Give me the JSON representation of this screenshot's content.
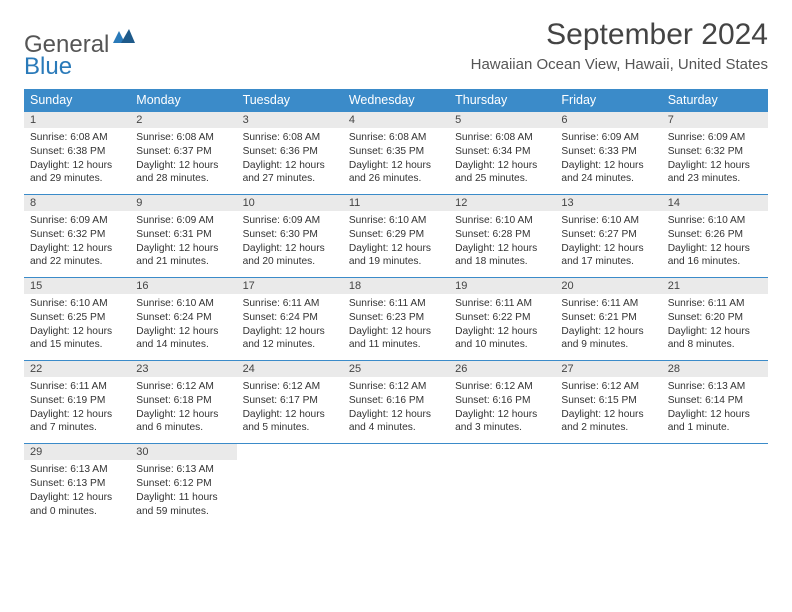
{
  "brand": {
    "part1": "General",
    "part2": "Blue"
  },
  "title": "September 2024",
  "location": "Hawaiian Ocean View, Hawaii, United States",
  "colors": {
    "header_bg": "#3b8bc9",
    "header_text": "#ffffff",
    "daynum_bg": "#eaeaea",
    "border": "#3b8bc9",
    "logo_accent": "#2a7ab9"
  },
  "weekdays": [
    "Sunday",
    "Monday",
    "Tuesday",
    "Wednesday",
    "Thursday",
    "Friday",
    "Saturday"
  ],
  "layout": {
    "columns": 7,
    "rows": 5,
    "start_weekday": 0,
    "days_in_month": 30
  },
  "days": [
    {
      "n": 1,
      "sunrise": "6:08 AM",
      "sunset": "6:38 PM",
      "daylight": "12 hours and 29 minutes."
    },
    {
      "n": 2,
      "sunrise": "6:08 AM",
      "sunset": "6:37 PM",
      "daylight": "12 hours and 28 minutes."
    },
    {
      "n": 3,
      "sunrise": "6:08 AM",
      "sunset": "6:36 PM",
      "daylight": "12 hours and 27 minutes."
    },
    {
      "n": 4,
      "sunrise": "6:08 AM",
      "sunset": "6:35 PM",
      "daylight": "12 hours and 26 minutes."
    },
    {
      "n": 5,
      "sunrise": "6:08 AM",
      "sunset": "6:34 PM",
      "daylight": "12 hours and 25 minutes."
    },
    {
      "n": 6,
      "sunrise": "6:09 AM",
      "sunset": "6:33 PM",
      "daylight": "12 hours and 24 minutes."
    },
    {
      "n": 7,
      "sunrise": "6:09 AM",
      "sunset": "6:32 PM",
      "daylight": "12 hours and 23 minutes."
    },
    {
      "n": 8,
      "sunrise": "6:09 AM",
      "sunset": "6:32 PM",
      "daylight": "12 hours and 22 minutes."
    },
    {
      "n": 9,
      "sunrise": "6:09 AM",
      "sunset": "6:31 PM",
      "daylight": "12 hours and 21 minutes."
    },
    {
      "n": 10,
      "sunrise": "6:09 AM",
      "sunset": "6:30 PM",
      "daylight": "12 hours and 20 minutes."
    },
    {
      "n": 11,
      "sunrise": "6:10 AM",
      "sunset": "6:29 PM",
      "daylight": "12 hours and 19 minutes."
    },
    {
      "n": 12,
      "sunrise": "6:10 AM",
      "sunset": "6:28 PM",
      "daylight": "12 hours and 18 minutes."
    },
    {
      "n": 13,
      "sunrise": "6:10 AM",
      "sunset": "6:27 PM",
      "daylight": "12 hours and 17 minutes."
    },
    {
      "n": 14,
      "sunrise": "6:10 AM",
      "sunset": "6:26 PM",
      "daylight": "12 hours and 16 minutes."
    },
    {
      "n": 15,
      "sunrise": "6:10 AM",
      "sunset": "6:25 PM",
      "daylight": "12 hours and 15 minutes."
    },
    {
      "n": 16,
      "sunrise": "6:10 AM",
      "sunset": "6:24 PM",
      "daylight": "12 hours and 14 minutes."
    },
    {
      "n": 17,
      "sunrise": "6:11 AM",
      "sunset": "6:24 PM",
      "daylight": "12 hours and 12 minutes."
    },
    {
      "n": 18,
      "sunrise": "6:11 AM",
      "sunset": "6:23 PM",
      "daylight": "12 hours and 11 minutes."
    },
    {
      "n": 19,
      "sunrise": "6:11 AM",
      "sunset": "6:22 PM",
      "daylight": "12 hours and 10 minutes."
    },
    {
      "n": 20,
      "sunrise": "6:11 AM",
      "sunset": "6:21 PM",
      "daylight": "12 hours and 9 minutes."
    },
    {
      "n": 21,
      "sunrise": "6:11 AM",
      "sunset": "6:20 PM",
      "daylight": "12 hours and 8 minutes."
    },
    {
      "n": 22,
      "sunrise": "6:11 AM",
      "sunset": "6:19 PM",
      "daylight": "12 hours and 7 minutes."
    },
    {
      "n": 23,
      "sunrise": "6:12 AM",
      "sunset": "6:18 PM",
      "daylight": "12 hours and 6 minutes."
    },
    {
      "n": 24,
      "sunrise": "6:12 AM",
      "sunset": "6:17 PM",
      "daylight": "12 hours and 5 minutes."
    },
    {
      "n": 25,
      "sunrise": "6:12 AM",
      "sunset": "6:16 PM",
      "daylight": "12 hours and 4 minutes."
    },
    {
      "n": 26,
      "sunrise": "6:12 AM",
      "sunset": "6:16 PM",
      "daylight": "12 hours and 3 minutes."
    },
    {
      "n": 27,
      "sunrise": "6:12 AM",
      "sunset": "6:15 PM",
      "daylight": "12 hours and 2 minutes."
    },
    {
      "n": 28,
      "sunrise": "6:13 AM",
      "sunset": "6:14 PM",
      "daylight": "12 hours and 1 minute."
    },
    {
      "n": 29,
      "sunrise": "6:13 AM",
      "sunset": "6:13 PM",
      "daylight": "12 hours and 0 minutes."
    },
    {
      "n": 30,
      "sunrise": "6:13 AM",
      "sunset": "6:12 PM",
      "daylight": "11 hours and 59 minutes."
    }
  ],
  "labels": {
    "sunrise": "Sunrise:",
    "sunset": "Sunset:",
    "daylight": "Daylight:"
  }
}
